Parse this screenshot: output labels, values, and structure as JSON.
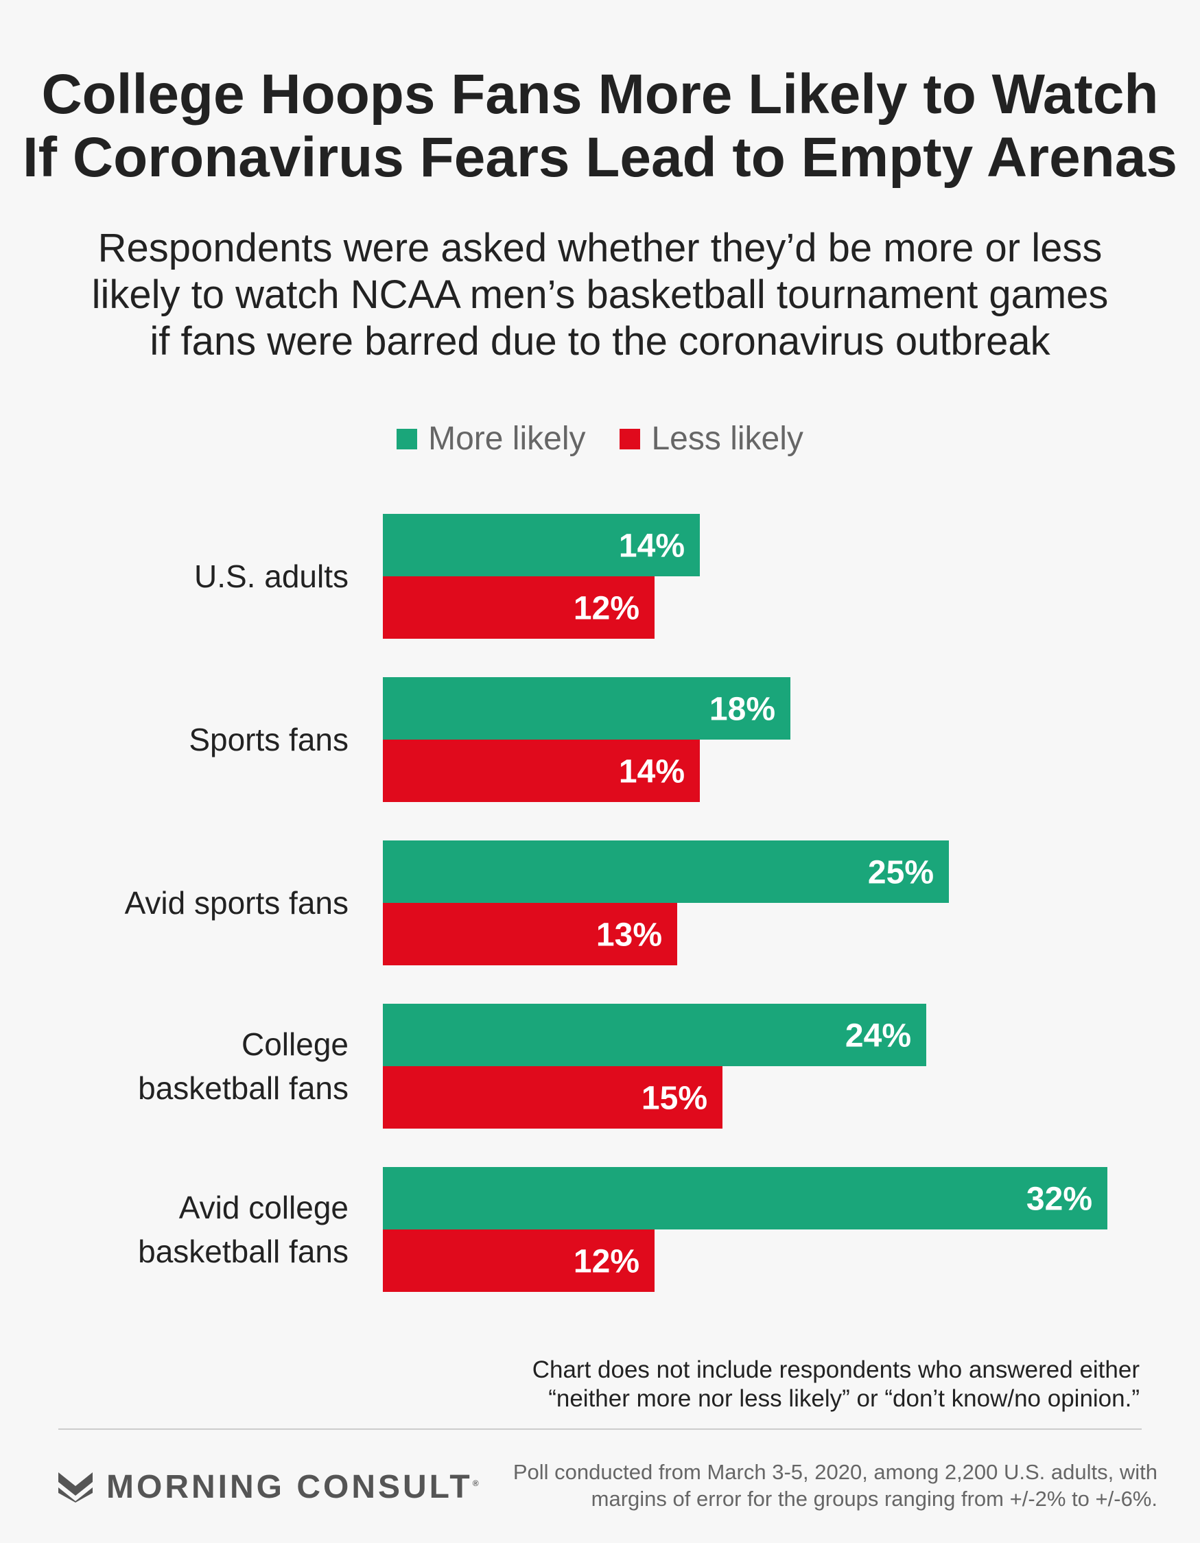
{
  "title_lines": [
    "College Hoops Fans More Likely to Watch",
    "If Coronavirus Fears Lead to Empty Arenas"
  ],
  "subtitle_lines": [
    "Respondents were asked whether they’d be more or less",
    "likely to watch NCAA men’s basketball tournament games",
    "if fans were barred due to the coronavirus outbreak"
  ],
  "colors": {
    "more": "#1aa67a",
    "less": "#e00a1c",
    "text": "#222222",
    "muted": "#666666"
  },
  "chart_data": {
    "type": "bar",
    "orientation": "horizontal",
    "categories": [
      [
        "U.S. adults"
      ],
      [
        "Sports fans"
      ],
      [
        "Avid sports fans"
      ],
      [
        "College",
        "basketball fans"
      ],
      [
        "Avid college",
        "basketball fans"
      ]
    ],
    "series": [
      {
        "name": "More likely",
        "values": [
          14,
          18,
          25,
          24,
          32
        ],
        "labels": [
          "14%",
          "18%",
          "25%",
          "24%",
          "32%"
        ]
      },
      {
        "name": "Less likely",
        "values": [
          12,
          14,
          13,
          15,
          12
        ],
        "labels": [
          "12%",
          "14%",
          "13%",
          "15%",
          "12%"
        ]
      }
    ],
    "unit": "%",
    "xlim": [
      0,
      32
    ],
    "legend_position": "top-center",
    "grid": false
  },
  "note_lines": [
    "Chart does not include respondents who answered either",
    "“neither more nor less likely” or “don’t know/no opinion.”"
  ],
  "logo": {
    "text": "MORNING CONSULT",
    "mark": "®",
    "icon": "morning-consult-m-icon"
  },
  "footer_lines": [
    "Poll conducted from March 3-5, 2020, among 2,200 U.S. adults, with",
    "margins of error for the groups ranging from +/-2% to +/-6%."
  ]
}
